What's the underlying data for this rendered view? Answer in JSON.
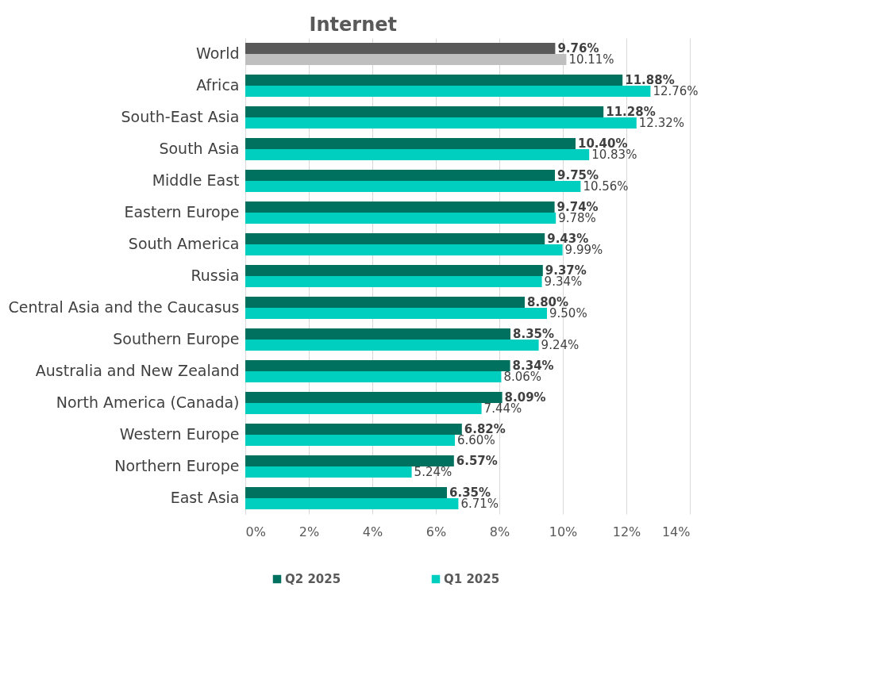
{
  "chart_data": {
    "type": "bar",
    "orientation": "horizontal",
    "title": "Internet",
    "categories": [
      "World",
      "Africa",
      "South-East Asia",
      "South Asia",
      "Middle East",
      "Eastern Europe",
      "South America",
      "Russia",
      "Central Asia and the Caucasus",
      "Southern Europe",
      "Australia and New Zealand",
      "North America (Canada)",
      "Western Europe",
      "Northern Europe",
      "East Asia"
    ],
    "series": [
      {
        "name": "Q2 2025",
        "color": "#00715f",
        "colors": [
          "#595959",
          "#00715f",
          "#00715f",
          "#00715f",
          "#00715f",
          "#00715f",
          "#00715f",
          "#00715f",
          "#00715f",
          "#00715f",
          "#00715f",
          "#00715f",
          "#00715f",
          "#00715f",
          "#00715f"
        ],
        "values": [
          9.76,
          11.88,
          11.28,
          10.4,
          9.75,
          9.74,
          9.43,
          9.37,
          8.8,
          8.35,
          8.34,
          8.09,
          6.82,
          6.57,
          6.35
        ],
        "value_labels": [
          "9.76%",
          "11.88%",
          "11.28%",
          "10.40%",
          "9.75%",
          "9.74%",
          "9.43%",
          "9.37%",
          "8.80%",
          "8.35%",
          "8.34%",
          "8.09%",
          "6.82%",
          "6.57%",
          "6.35%"
        ]
      },
      {
        "name": "Q1 2025",
        "color": "#00cfc0",
        "colors": [
          "#bfbfbf",
          "#00cfc0",
          "#00cfc0",
          "#00cfc0",
          "#00cfc0",
          "#00cfc0",
          "#00cfc0",
          "#00cfc0",
          "#00cfc0",
          "#00cfc0",
          "#00cfc0",
          "#00cfc0",
          "#00cfc0",
          "#00cfc0",
          "#00cfc0"
        ],
        "values": [
          10.11,
          12.76,
          12.32,
          10.83,
          10.56,
          9.78,
          9.99,
          9.34,
          9.5,
          9.24,
          8.06,
          7.44,
          6.6,
          5.24,
          6.71
        ],
        "value_labels": [
          "10.11%",
          "12.76%",
          "12.32%",
          "10.83%",
          "10.56%",
          "9.78%",
          "9.99%",
          "9.34%",
          "9.50%",
          "9.24%",
          "8.06%",
          "7.44%",
          "6.60%",
          "5.24%",
          "6.71%"
        ]
      }
    ],
    "xlim": [
      0,
      14
    ],
    "xticks": [
      {
        "value": 0,
        "label": "0%"
      },
      {
        "value": 2,
        "label": "2%"
      },
      {
        "value": 4,
        "label": "4%"
      },
      {
        "value": 6,
        "label": "6%"
      },
      {
        "value": 8,
        "label": "8%"
      },
      {
        "value": 10,
        "label": "10%"
      },
      {
        "value": 12,
        "label": "12%"
      },
      {
        "value": 14,
        "label": "14%"
      }
    ],
    "grid": "x",
    "legend": "bottom"
  }
}
